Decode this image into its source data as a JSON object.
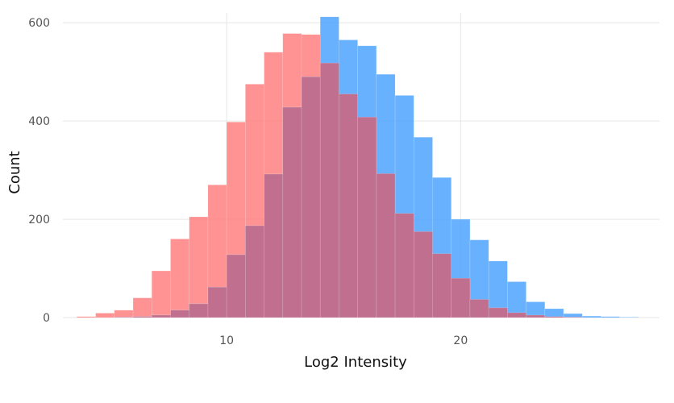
{
  "chart_data": {
    "type": "bar",
    "subtype": "overlaid-histogram",
    "title": "",
    "xlabel": "Log2 Intensity",
    "ylabel": "Count",
    "xlim": [
      3.0,
      28.5
    ],
    "ylim": [
      0,
      620
    ],
    "x_ticks": [
      10,
      20
    ],
    "y_ticks": [
      0,
      200,
      400,
      600
    ],
    "grid": true,
    "legend": "none",
    "bin_width": 0.8,
    "bin_starts": [
      3.6,
      4.4,
      5.2,
      6.0,
      6.8,
      7.6,
      8.4,
      9.2,
      10.0,
      10.8,
      11.6,
      12.4,
      13.2,
      14.0,
      14.8,
      15.6,
      16.4,
      17.2,
      18.0,
      18.8,
      19.6,
      20.4,
      21.2,
      22.0,
      22.8,
      23.6,
      24.4,
      25.2,
      26.0,
      26.8
    ],
    "series": [
      {
        "color": "#ff7f7f",
        "opacity": 0.85,
        "values": [
          2,
          9,
          15,
          40,
          95,
          160,
          205,
          270,
          398,
          475,
          540,
          578,
          576,
          518,
          455,
          408,
          293,
          212,
          175,
          130,
          80,
          37,
          20,
          10,
          5,
          2,
          1,
          0,
          0,
          0
        ]
      },
      {
        "color": "#4da3ff",
        "opacity": 0.85,
        "values": [
          0,
          0,
          1,
          2,
          5,
          15,
          28,
          62,
          128,
          187,
          292,
          428,
          490,
          612,
          565,
          553,
          495,
          452,
          367,
          285,
          200,
          158,
          115,
          73,
          32,
          18,
          8,
          3,
          2,
          1
        ]
      }
    ],
    "overlap_color": "#c0708e"
  }
}
